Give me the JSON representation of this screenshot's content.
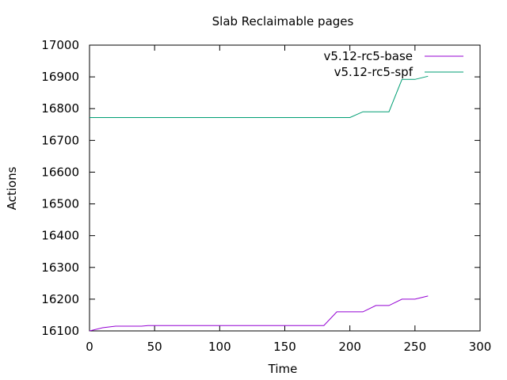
{
  "chart_data": {
    "type": "line",
    "title": "Slab Reclaimable pages",
    "xlabel": "Time",
    "ylabel": "Actions",
    "xlim": [
      0,
      300
    ],
    "ylim": [
      16100,
      17000
    ],
    "xticks": [
      0,
      50,
      100,
      150,
      200,
      250,
      300
    ],
    "yticks": [
      16100,
      16200,
      16300,
      16400,
      16500,
      16600,
      16700,
      16800,
      16900,
      17000
    ],
    "grid": false,
    "legend_position": "top-right",
    "series": [
      {
        "name": "v5.12-rc5-base",
        "color": "#9400d3",
        "x": [
          0,
          10,
          20,
          30,
          40,
          45,
          50,
          60,
          100,
          150,
          170,
          180,
          190,
          200,
          210,
          220,
          230,
          240,
          250,
          260
        ],
        "y": [
          16100,
          16110,
          16115,
          16115,
          16115,
          16117,
          16117,
          16117,
          16117,
          16117,
          16117,
          16117,
          16160,
          16160,
          16160,
          16180,
          16180,
          16200,
          16200,
          16210
        ]
      },
      {
        "name": "v5.12-rc5-spf",
        "color": "#009e73",
        "x": [
          0,
          50,
          100,
          150,
          200,
          210,
          220,
          230,
          240,
          250,
          260
        ],
        "y": [
          16772,
          16772,
          16772,
          16772,
          16772,
          16790,
          16790,
          16790,
          16892,
          16892,
          16902
        ]
      }
    ]
  }
}
